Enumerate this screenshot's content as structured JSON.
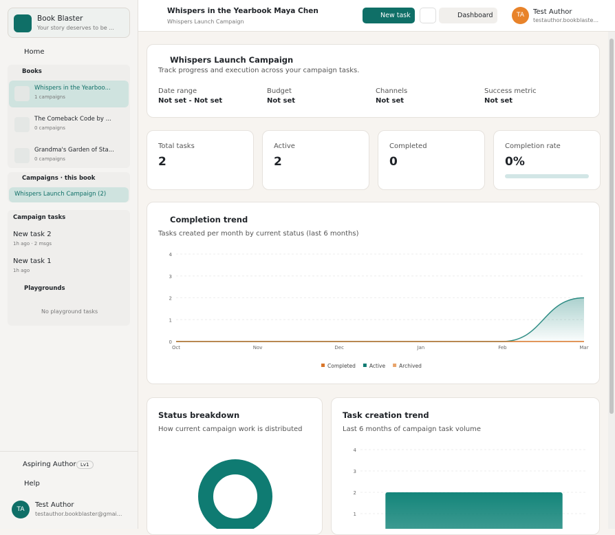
{
  "sidebar": {
    "app_name": "Book Blaster",
    "tagline": "Your story deserves to be ...",
    "home": "Home",
    "books_label": "Books",
    "books": [
      {
        "title": "Whispers in the Yearboo...",
        "meta": "1 campaigns"
      },
      {
        "title": "The Comeback Code by ...",
        "meta": "0 campaigns"
      },
      {
        "title": "Grandma's Garden of Sta...",
        "meta": "0 campaigns"
      }
    ],
    "campaigns_label": "Campaigns · this book",
    "campaigns": [
      "Whispers Launch Campaign (2)"
    ],
    "tasks_label": "Campaign tasks",
    "tasks": [
      {
        "title": "New task 2",
        "meta": "1h ago · 2 msgs"
      },
      {
        "title": "New task 1",
        "meta": "1h ago"
      }
    ],
    "playgrounds_label": "Playgrounds",
    "playground_empty": "No playground tasks",
    "level": "Aspiring Author",
    "level_badge": "Lv1",
    "help": "Help",
    "avatar": "TA",
    "user_name": "Test Author",
    "user_email": "testauthor.bookblaster@gmai..."
  },
  "topbar": {
    "title": "Whispers in the Yearbook Maya Chen",
    "subtitle": "Whispers Launch Campaign",
    "new_task": "New task",
    "dashboard": "Dashboard",
    "avatar": "TA",
    "user_name": "Test Author",
    "user_email": "testauthor.bookblaste..."
  },
  "campaign": {
    "title": "Whispers Launch Campaign",
    "description": "Track progress and execution across your campaign tasks.",
    "fields": [
      {
        "label": "Date range",
        "value": "Not set - Not set"
      },
      {
        "label": "Budget",
        "value": "Not set"
      },
      {
        "label": "Channels",
        "value": "Not set"
      },
      {
        "label": "Success metric",
        "value": "Not set"
      }
    ]
  },
  "stats": [
    {
      "label": "Total tasks",
      "value": "2"
    },
    {
      "label": "Active",
      "value": "2"
    },
    {
      "label": "Completed",
      "value": "0"
    },
    {
      "label": "Completion rate",
      "value": "0%"
    }
  ],
  "chart_data": [
    {
      "type": "line",
      "title": "Completion trend",
      "subtitle": "Tasks created per month by current status (last 6 months)",
      "categories": [
        "Oct",
        "Nov",
        "Dec",
        "Jan",
        "Feb",
        "Mar"
      ],
      "ylim": [
        0,
        4
      ],
      "yticks": [
        0,
        1,
        2,
        3,
        4
      ],
      "legend": "bottom",
      "series": [
        {
          "name": "Completed",
          "color": "#d9762a",
          "values": [
            0,
            0,
            0,
            0,
            0,
            0
          ]
        },
        {
          "name": "Active",
          "color": "#0f7b72",
          "values": [
            0,
            0,
            0,
            0,
            0,
            2
          ]
        },
        {
          "name": "Archived",
          "color": "#e8a46a",
          "values": [
            0,
            0,
            0,
            0,
            0,
            0
          ]
        }
      ]
    },
    {
      "type": "pie",
      "title": "Status breakdown",
      "subtitle": "How current campaign work is distributed",
      "values": [
        2
      ],
      "colors": [
        "#0f7b72"
      ]
    },
    {
      "type": "bar",
      "title": "Task creation trend",
      "subtitle": "Last 6 months of campaign task volume",
      "values": [
        2
      ],
      "color": "#14857a",
      "ylim": [
        0,
        4
      ],
      "yticks": [
        1,
        2,
        3,
        4
      ]
    }
  ]
}
